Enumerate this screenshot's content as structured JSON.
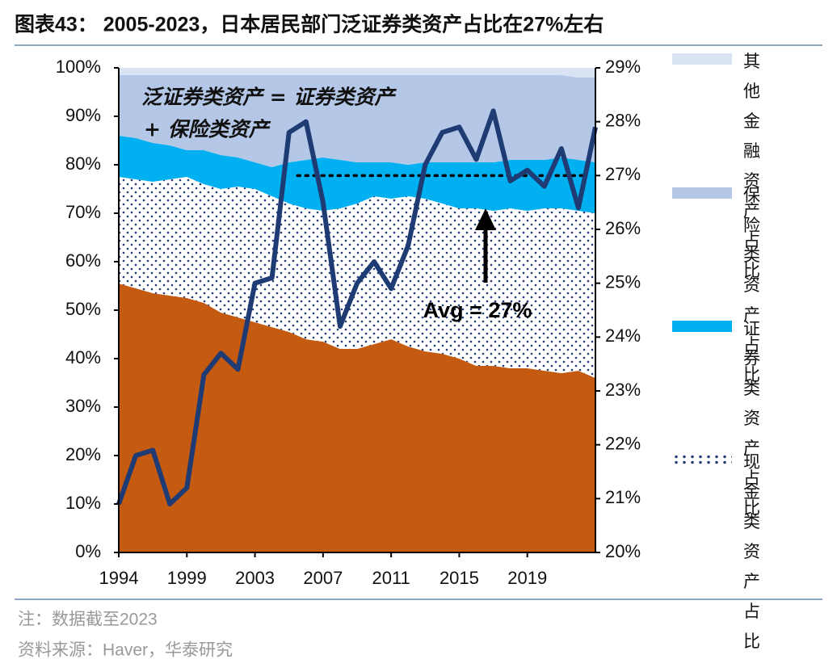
{
  "title": "图表43： 2005-2023，日本居民部门泛证券类资产占比在27%左右",
  "note": "注：数据截至2023",
  "source": "资料来源：Haver，华泰研究",
  "chart_data": {
    "type": "stacked_area_line",
    "categories": [
      "1994",
      null,
      null,
      null,
      "1999",
      null,
      null,
      null,
      "2003",
      null,
      null,
      null,
      "2007",
      null,
      null,
      null,
      "2011",
      null,
      null,
      null,
      "2015",
      null,
      null,
      null,
      "2019",
      null,
      null,
      null,
      null
    ],
    "ylim": [
      0,
      100
    ],
    "yticks": [
      {
        "value": 0,
        "label": "0%"
      },
      {
        "value": 10,
        "label": "10%"
      },
      {
        "value": 20,
        "label": "20%"
      },
      {
        "value": 30,
        "label": "30%"
      },
      {
        "value": 40,
        "label": "40%"
      },
      {
        "value": 50,
        "label": "50%"
      },
      {
        "value": 60,
        "label": "60%"
      },
      {
        "value": 70,
        "label": "70%"
      },
      {
        "value": 80,
        "label": "80%"
      },
      {
        "value": 90,
        "label": "90%"
      },
      {
        "value": 100,
        "label": "100%"
      }
    ],
    "y2lim": [
      20,
      29
    ],
    "y2ticks": [
      {
        "value": 20,
        "label": "20%"
      },
      {
        "value": 21,
        "label": "21%"
      },
      {
        "value": 22,
        "label": "22%"
      },
      {
        "value": 23,
        "label": "23%"
      },
      {
        "value": 24,
        "label": "24%"
      },
      {
        "value": 25,
        "label": "25%"
      },
      {
        "value": 26,
        "label": "26%"
      },
      {
        "value": 27,
        "label": "27%"
      },
      {
        "value": 28,
        "label": "28%"
      },
      {
        "value": 29,
        "label": "29%"
      }
    ],
    "series": [
      {
        "color": "#c55a11",
        "values": [
          55.5,
          54.5,
          53.5,
          53,
          52.5,
          51.5,
          49.5,
          48.5,
          47.5,
          46.5,
          45.5,
          44,
          43.5,
          42,
          42,
          43,
          44,
          42.5,
          41.5,
          41,
          40,
          38.5,
          38.5,
          38,
          38,
          37.5,
          37,
          37.5,
          36
        ]
      },
      {
        "name": "现金类资产占比",
        "color": "#1f3b73",
        "fill_pattern": "dots",
        "values": [
          22,
          22.5,
          23,
          24,
          25,
          24.5,
          25.5,
          27,
          27.5,
          27,
          26.5,
          27,
          27,
          29,
          30,
          30.5,
          29,
          31,
          31.5,
          31,
          31,
          32.5,
          32,
          33,
          32.5,
          33.5,
          34,
          33,
          34
        ]
      },
      {
        "name": "证券类资产占比",
        "color": "#00b0f0",
        "values": [
          8.5,
          8.5,
          8,
          7,
          5.5,
          7,
          7,
          6,
          5.5,
          6,
          8.5,
          10,
          11,
          10,
          8.5,
          7,
          7.5,
          6.5,
          7.5,
          8.5,
          9.5,
          9.5,
          10,
          10,
          10.5,
          10,
          10.5,
          10.5,
          10.5
        ]
      },
      {
        "name": "保险类资产占比",
        "color": "#b4c7e7",
        "values": [
          12.5,
          13,
          14,
          14.5,
          15.5,
          15.5,
          16.5,
          17,
          18,
          19,
          18,
          17.5,
          17,
          17.5,
          18,
          18,
          18,
          18.5,
          18,
          18,
          18,
          18,
          18,
          17.5,
          17.5,
          17.5,
          17,
          17,
          17.5
        ]
      },
      {
        "name": "其他金融资产占比",
        "color": "#dae3f3",
        "values": [
          1.5,
          1.5,
          1.5,
          1.5,
          1.5,
          1.5,
          1.5,
          1.5,
          1.5,
          1.5,
          1.5,
          1.5,
          1.5,
          1.5,
          1.5,
          1.5,
          1.5,
          1.5,
          1.5,
          1.5,
          1.5,
          1.5,
          1.5,
          1.5,
          1.5,
          1.5,
          1.5,
          2,
          2
        ]
      },
      {
        "color": "#1f3b73",
        "axis": "y2",
        "line": true,
        "values": [
          20.9,
          21.8,
          21.9,
          20.9,
          21.2,
          23.3,
          23.7,
          23.4,
          25.0,
          25.1,
          27.8,
          28.0,
          26.5,
          24.2,
          25.0,
          25.4,
          24.9,
          25.7,
          27.2,
          27.8,
          27.9,
          27.3,
          28.2,
          26.9,
          27.1,
          26.8,
          27.5,
          26.4,
          27.9
        ]
      }
    ],
    "avg_line": {
      "value": 27,
      "label": "Avg = 27%"
    },
    "annotation": [
      "泛证券类资产 = 证券类资产",
      "+ 保险类资产"
    ]
  }
}
